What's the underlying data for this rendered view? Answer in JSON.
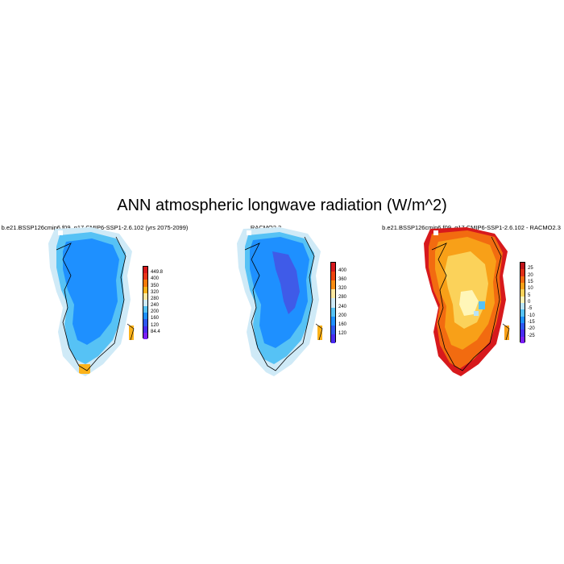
{
  "title": "ANN atmospheric longwave radiation (W/m^2)",
  "panels": [
    {
      "title": "b.e21.BSSP126cmip6.f09_g17.CMIP6-SSP1-2.6.102 (yrs 2075-2099)",
      "colorbar": {
        "labels": [
          "449.8",
          "400",
          "350",
          "320",
          "280",
          "240",
          "200",
          "160",
          "120",
          "84.4"
        ],
        "colors": [
          "#d7191c",
          "#e8361a",
          "#f67a0a",
          "#fbb21a",
          "#fde8a0",
          "#cfeaf7",
          "#56c2f5",
          "#1e90ff",
          "#2e58ee",
          "#4a2bf0",
          "#7b1ef5"
        ]
      },
      "map_note": "mostly medium blue (200-240) interior, lighter blue edges, yellow patches in the far south and east coast"
    },
    {
      "title": "RACMO2.3",
      "colorbar": {
        "labels": [
          "400",
          "360",
          "320",
          "280",
          "240",
          "200",
          "160",
          "120"
        ],
        "colors": [
          "#d7191c",
          "#f0440e",
          "#f98c12",
          "#fde8a0",
          "#cfeaf7",
          "#56c2f5",
          "#1e90ff",
          "#2e58ee",
          "#4a2bf0"
        ]
      },
      "map_note": "blue ice sheet with darker indigo (160-200) central region"
    },
    {
      "title": "b.e21.BSSP126cmip6.f09_g17.CMIP6-SSP1-2.6.102 - RACMO2.3",
      "colorbar": {
        "labels": [
          "25",
          "20",
          "15",
          "10",
          "5",
          "0",
          "-5",
          "-10",
          "-15",
          "-20",
          "-25"
        ],
        "colors": [
          "#c0141a",
          "#e03019",
          "#f26b10",
          "#f8a018",
          "#fbd25a",
          "#fff6b8",
          "#b8e4f8",
          "#56c2f5",
          "#1e90ff",
          "#2e58ee",
          "#4a2bf0",
          "#7b1ef5"
        ]
      },
      "map_note": "warm positive differences: red margins, orange and yellow interior, pale yellow center"
    }
  ]
}
